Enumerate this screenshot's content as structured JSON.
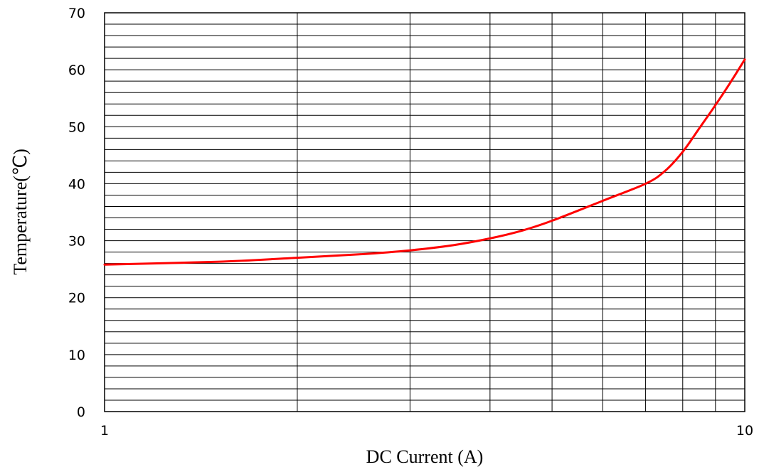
{
  "chart_data": {
    "type": "line",
    "title": "",
    "xlabel": "DC Current (A)",
    "ylabel": "Temperature(℃)",
    "x_scale": "log",
    "xlim": [
      1,
      10
    ],
    "ylim": [
      0,
      70
    ],
    "x_ticks": [
      {
        "value": 1,
        "label": "1"
      },
      {
        "value": 10,
        "label": "10"
      }
    ],
    "y_ticks": [
      {
        "value": 0,
        "label": "0"
      },
      {
        "value": 10,
        "label": "10"
      },
      {
        "value": 20,
        "label": "20"
      },
      {
        "value": 30,
        "label": "30"
      },
      {
        "value": 40,
        "label": "40"
      },
      {
        "value": 50,
        "label": "50"
      },
      {
        "value": 60,
        "label": "60"
      },
      {
        "value": 70,
        "label": "70"
      }
    ],
    "grid": {
      "x_major": [
        2,
        3,
        4,
        5,
        6,
        7,
        8,
        9
      ],
      "y_minor_step": 2
    },
    "colors": {
      "line": "#ff0000",
      "grid": "#000000"
    },
    "series": [
      {
        "x": [
          1,
          1.5,
          2,
          2.5,
          3,
          3.5,
          4,
          4.5,
          5,
          6,
          7,
          7.5,
          8,
          8.5,
          9,
          9.5,
          10
        ],
        "y": [
          25.8,
          26.3,
          27.0,
          27.6,
          28.3,
          29.2,
          30.4,
          31.8,
          33.5,
          37.0,
          40.0,
          42.2,
          45.6,
          49.8,
          53.8,
          57.8,
          61.8
        ]
      }
    ]
  }
}
